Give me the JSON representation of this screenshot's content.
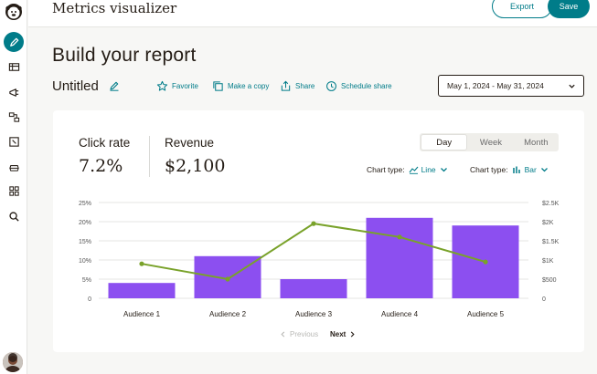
{
  "app": {
    "title": "Metrics visualizer"
  },
  "topbar": {
    "export_label": "Export",
    "save_label": "Save"
  },
  "sidebar": {
    "items": [
      {
        "name": "pencil-icon",
        "active": true
      },
      {
        "name": "campaigns-icon",
        "active": false
      },
      {
        "name": "megaphone-icon",
        "active": false
      },
      {
        "name": "automation-icon",
        "active": false
      },
      {
        "name": "content-icon",
        "active": false
      },
      {
        "name": "audience-icon",
        "active": false
      },
      {
        "name": "grid-icon",
        "active": false
      },
      {
        "name": "search-icon",
        "active": false
      }
    ]
  },
  "page": {
    "title": "Build your report"
  },
  "report": {
    "name": "Untitled",
    "actions": {
      "favorite": "Favorite",
      "copy": "Make a copy",
      "share": "Share",
      "schedule": "Schedule share"
    },
    "date_range": "May 1, 2024 - May 31, 2024"
  },
  "metrics": {
    "click_rate_label": "Click rate",
    "click_rate_value": "7.2%",
    "revenue_label": "Revenue",
    "revenue_value": "$2,100"
  },
  "tabs": {
    "day": "Day",
    "week": "Week",
    "month": "Month",
    "active": "Day"
  },
  "chart_type": {
    "label1": "Chart type:",
    "value1": "Line",
    "label2": "Chart type:",
    "value2": "Bar"
  },
  "pagination": {
    "prev": "Previous",
    "next": "Next"
  },
  "colors": {
    "accent": "#007c89",
    "bar": "#8c4ff0",
    "line": "#79a22a"
  },
  "chart_data": {
    "type": "bar",
    "categories": [
      "Audience 1",
      "Audience 2",
      "Audience 3",
      "Audience 4",
      "Audience 5"
    ],
    "series": [
      {
        "type": "bar",
        "axis": "right",
        "values": [
          400,
          1100,
          500,
          2100,
          1900
        ]
      },
      {
        "type": "line",
        "axis": "left",
        "values": [
          9,
          5,
          19.5,
          16,
          9.5
        ]
      }
    ],
    "y_left": {
      "ticks": [
        "0",
        "5%",
        "10%",
        "15%",
        "20%",
        "25%"
      ],
      "range": [
        0,
        25
      ]
    },
    "y_right": {
      "ticks": [
        "0",
        "$500",
        "$1K",
        "$1.5K",
        "$2K",
        "$2.5K"
      ],
      "range": [
        0,
        2500
      ]
    },
    "grid": true,
    "legend": "none"
  }
}
